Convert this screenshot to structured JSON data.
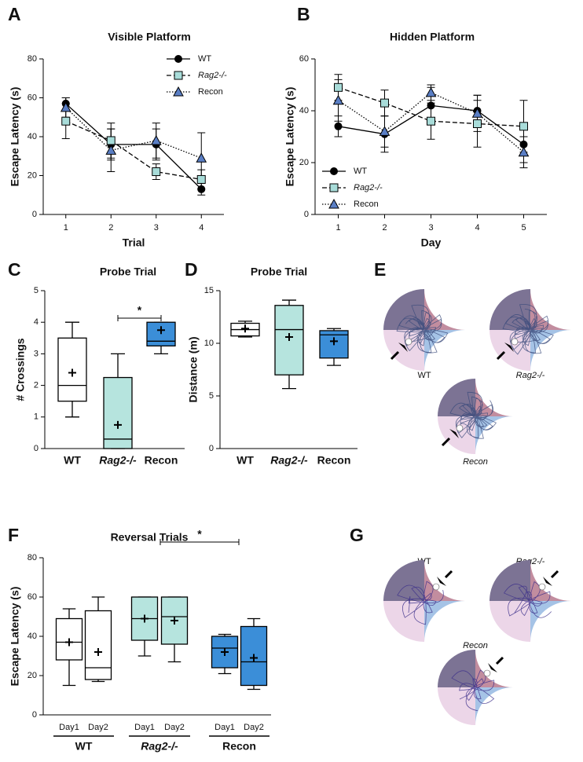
{
  "chart_data": [
    {
      "type": "line",
      "panel": "A",
      "title": "Visible Platform",
      "x_label": "Trial",
      "y_label": "Escape Latency (s)",
      "x": [
        1,
        2,
        3,
        4
      ],
      "xlim": [
        0.5,
        4.5
      ],
      "xticks": [
        1,
        2,
        3,
        4
      ],
      "ylim": [
        0,
        80
      ],
      "yticks": [
        0,
        20,
        40,
        60,
        80
      ],
      "legend": "top-right",
      "series": [
        {
          "name": "WT",
          "color": "#000000",
          "marker": "circle",
          "line_style": "solid",
          "values": [
            57,
            36,
            36,
            13
          ],
          "errors": [
            3,
            8,
            8,
            3
          ]
        },
        {
          "name": "Rag2-/-",
          "color": "#a8dcd9",
          "marker": "square",
          "line_style": "dashed",
          "values": [
            48,
            38,
            22,
            18
          ],
          "errors": [
            9,
            9,
            4,
            5
          ]
        },
        {
          "name": "Recon",
          "color": "#5a7ec4",
          "marker": "triangle",
          "line_style": "dotted",
          "values": [
            55,
            33,
            38,
            29
          ],
          "errors": [
            5,
            11,
            9,
            13
          ]
        }
      ]
    },
    {
      "type": "line",
      "panel": "B",
      "title": "Hidden Platform",
      "x_label": "Day",
      "y_label": "Escape Latency (s)",
      "x": [
        1,
        2,
        3,
        4,
        5
      ],
      "xlim": [
        0.5,
        5.5
      ],
      "xticks": [
        1,
        2,
        3,
        4,
        5
      ],
      "ylim": [
        0,
        60
      ],
      "yticks": [
        0,
        20,
        40,
        60
      ],
      "legend": "bottom-left",
      "series": [
        {
          "name": "WT",
          "color": "#000000",
          "marker": "circle",
          "line_style": "solid",
          "values": [
            34,
            31,
            42,
            40,
            27
          ],
          "errors": [
            4,
            7,
            7,
            6,
            7
          ]
        },
        {
          "name": "Rag2-/-",
          "color": "#a8dcd9",
          "marker": "square",
          "line_style": "dashed",
          "values": [
            49,
            43,
            36,
            35,
            34
          ],
          "errors": [
            5,
            5,
            7,
            9,
            10
          ]
        },
        {
          "name": "Recon",
          "color": "#5a7ec4",
          "marker": "triangle",
          "line_style": "dotted",
          "values": [
            44,
            32,
            47,
            39,
            24
          ],
          "errors": [
            8,
            6,
            3,
            7,
            6
          ]
        }
      ]
    },
    {
      "type": "box",
      "panel": "C",
      "title": "Probe Trial",
      "y_label": "# Crossings",
      "categories": [
        "WT",
        "Rag2-/-",
        "Recon"
      ],
      "colors": [
        "#ffffff",
        "#b6e4de",
        "#3b8ed8"
      ],
      "min": [
        1,
        0,
        3
      ],
      "q1": [
        1.5,
        0,
        3.25
      ],
      "median": [
        2,
        0.3,
        3.4
      ],
      "q3": [
        3.5,
        2.25,
        4
      ],
      "max": [
        4,
        3,
        4
      ],
      "mean": [
        2.4,
        0.75,
        3.75
      ],
      "ylim": [
        0,
        5
      ],
      "yticks": [
        0,
        1,
        2,
        3,
        4,
        5
      ],
      "significance": "*"
    },
    {
      "type": "box",
      "panel": "D",
      "title": "Probe Trial",
      "y_label": "Distance (m)",
      "categories": [
        "WT",
        "Rag2-/-",
        "Recon"
      ],
      "colors": [
        "#ffffff",
        "#b6e4de",
        "#3b8ed8"
      ],
      "min": [
        10.6,
        5.7,
        7.9
      ],
      "q1": [
        10.7,
        7,
        8.6
      ],
      "median": [
        11.3,
        11.3,
        10.8
      ],
      "q3": [
        11.9,
        13.6,
        11.2
      ],
      "max": [
        12.1,
        14.1,
        11.4
      ],
      "mean": [
        11.4,
        10.6,
        10.2
      ],
      "ylim": [
        0,
        15
      ],
      "yticks": [
        0,
        5,
        10,
        15
      ]
    },
    {
      "type": "box",
      "panel": "F",
      "title": "Reversal Trials",
      "y_label": "Escape Latency (s)",
      "categories": [
        "Day1",
        "Day2",
        "Day1",
        "Day2",
        "Day1",
        "Day2"
      ],
      "groups": [
        "WT",
        "Rag2-/-",
        "Recon"
      ],
      "colors": [
        "#ffffff",
        "#ffffff",
        "#b6e4de",
        "#b6e4de",
        "#3b8ed8",
        "#3b8ed8"
      ],
      "min": [
        15,
        17,
        30,
        27,
        21,
        13
      ],
      "q1": [
        28,
        18,
        38,
        36,
        24,
        15
      ],
      "median": [
        37,
        24,
        49,
        50,
        34,
        27
      ],
      "q3": [
        49,
        53,
        60,
        60,
        40,
        45
      ],
      "max": [
        54,
        60,
        60,
        60,
        41,
        49
      ],
      "mean": [
        37,
        32,
        49,
        48,
        32,
        29
      ],
      "ylim": [
        0,
        80
      ],
      "yticks": [
        0,
        20,
        40,
        60,
        80
      ],
      "significance": "*"
    }
  ],
  "panel_e": {
    "panel": "E",
    "labels": [
      "WT",
      "Rag2-/-",
      "Recon"
    ]
  },
  "panel_g": {
    "panel": "G",
    "labels": [
      "WT",
      "Rag2-/-",
      "Recon"
    ]
  }
}
